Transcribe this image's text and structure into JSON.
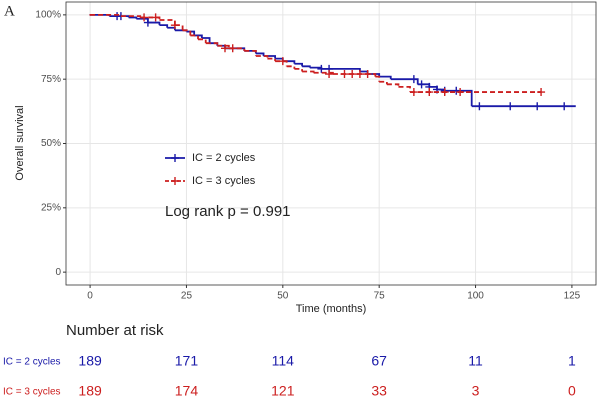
{
  "chart_data": {
    "type": "survival-step",
    "panel_label": "A",
    "x_label": "Time (months)",
    "y_label": "Overall survival",
    "annotation": "Log rank p = 0.991",
    "xlim": [
      -6.25,
      131.25
    ],
    "xticks": [
      0,
      25,
      50,
      75,
      100,
      125
    ],
    "ylim": [
      -5,
      105
    ],
    "yticks": [
      0,
      {
        "value": 25,
        "label": "25%"
      },
      {
        "value": 50,
        "label": "50%"
      },
      {
        "value": 75,
        "label": "75%"
      },
      {
        "value": 100,
        "label": "100%"
      }
    ],
    "grid": true,
    "series": [
      {
        "name": "IC = 2 cycles",
        "color": "#1a1aa8",
        "dash": false,
        "x": [
          0,
          5,
          10,
          12,
          15,
          18,
          20,
          22,
          25,
          27,
          29,
          31,
          33,
          35,
          40,
          43,
          45,
          48,
          50,
          53,
          55,
          57,
          60,
          70,
          72,
          75,
          78,
          85,
          88,
          90,
          92,
          99,
          99,
          126
        ],
        "values": [
          100,
          99.5,
          99,
          98.5,
          97,
          96,
          95,
          94,
          93.5,
          92,
          91,
          89,
          88,
          87,
          86,
          85,
          84,
          83,
          82,
          81,
          80,
          79.5,
          79,
          78,
          77,
          76,
          75,
          73,
          72,
          71,
          70.5,
          70,
          64.5,
          64.5
        ],
        "censored_x": [
          7,
          8,
          15,
          60,
          62,
          84,
          86,
          88,
          90,
          92,
          95,
          101,
          109,
          116,
          123
        ],
        "censored_values": [
          99.5,
          99.5,
          97,
          79,
          79,
          75,
          73,
          72,
          71,
          70.5,
          70.5,
          64.5,
          64.5,
          64.5,
          64.5
        ]
      },
      {
        "name": "IC = 3 cycles",
        "color": "#cc1f1f",
        "dash": true,
        "x": [
          0,
          8,
          13,
          18,
          22,
          24,
          26,
          28,
          30,
          33,
          36,
          40,
          43,
          46,
          48,
          51,
          53,
          55,
          58,
          63,
          74,
          75,
          77,
          80,
          83,
          117
        ],
        "values": [
          100,
          99.5,
          99,
          98,
          96,
          94,
          92,
          90.5,
          89,
          88,
          87,
          86,
          84,
          83,
          82,
          80,
          79,
          78,
          77.5,
          77,
          76,
          74,
          73,
          72,
          70,
          70
        ],
        "censored_x": [
          14,
          17,
          22,
          35,
          37,
          50,
          62,
          66,
          68,
          70,
          72,
          84,
          88,
          92,
          96,
          117
        ],
        "censored_values": [
          99,
          99,
          96,
          87,
          87,
          82,
          77,
          77,
          77,
          77,
          77,
          70,
          70,
          70,
          70,
          70
        ]
      }
    ],
    "risk_table": {
      "title": "Number at risk",
      "rows": [
        {
          "name": "IC = 2 cycles",
          "values": [
            189,
            171,
            114,
            67,
            11,
            1
          ]
        },
        {
          "name": "IC = 3 cycles",
          "values": [
            189,
            174,
            121,
            33,
            3,
            0
          ]
        }
      ]
    }
  }
}
